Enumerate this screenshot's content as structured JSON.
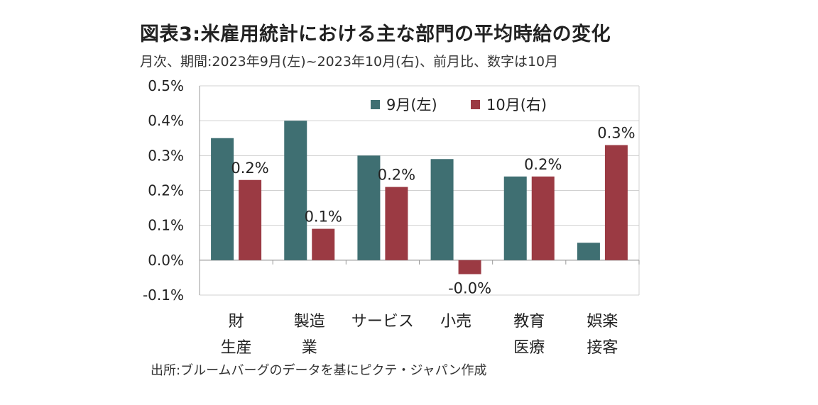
{
  "title": "図表3:米雇用統計における主な部門の平均時給の変化",
  "subtitle": "月次、期間:2023年9月(左)~2023年10月(右)、前月比、数字は10月",
  "source": "出所:ブルームバーグのデータを基にピクテ・ジャパン作成",
  "colors": {
    "sep": "#3f6f72",
    "oct": "#9b3a43",
    "grid": "#d0d0d0",
    "axis": "#9a9a9a"
  },
  "chart_data": {
    "type": "bar",
    "categories": [
      [
        "財",
        "生産"
      ],
      [
        "製造",
        "業"
      ],
      [
        "サービス"
      ],
      [
        "小売"
      ],
      [
        "教育",
        "医療"
      ],
      [
        "娯楽",
        "接客"
      ]
    ],
    "series": [
      {
        "name": "9月(左)",
        "values": [
          0.35,
          0.4,
          0.3,
          0.29,
          0.24,
          0.05
        ]
      },
      {
        "name": "10月(右)",
        "values": [
          0.23,
          0.09,
          0.21,
          -0.04,
          0.24,
          0.33
        ]
      }
    ],
    "data_labels": [
      "0.2%",
      "0.1%",
      "0.2%",
      "-0.0%",
      "0.2%",
      "0.3%"
    ],
    "yticks": [
      "0.5%",
      "0.4%",
      "0.3%",
      "0.2%",
      "0.1%",
      "0.0%",
      "-0.1%"
    ],
    "ylim": [
      -0.1,
      0.5
    ],
    "grid": true,
    "legend_position": "top-center"
  }
}
